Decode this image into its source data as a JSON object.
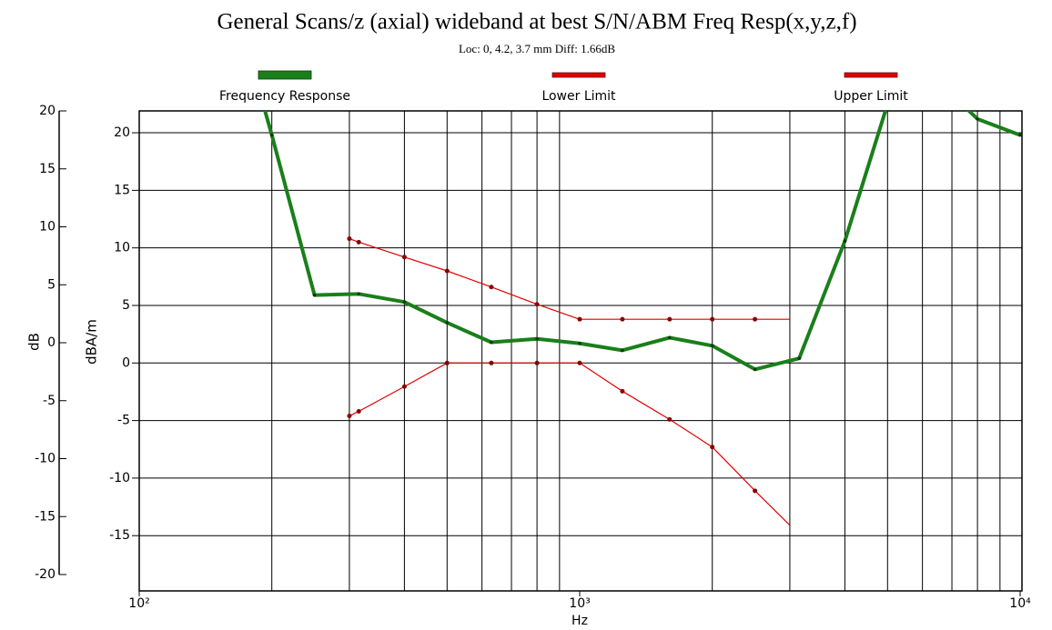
{
  "chart_data": {
    "type": "line",
    "title": "General Scans/z (axial) wideband at best S/N/ABM Freq Resp(x,y,z,f)",
    "subtitle": "Loc: 0, 4.2, 3.7 mm Diff: 1.66dB",
    "xlabel": "Hz",
    "ylabel": "dB",
    "y2label": "dBA/m",
    "log_x": true,
    "grid": true,
    "xlim": [
      100,
      10000
    ],
    "xticks": [
      {
        "value": 100,
        "label": "10²"
      },
      {
        "value": 1000,
        "label": "10³"
      },
      {
        "value": 10000,
        "label": "10⁴"
      }
    ],
    "ylim": [
      -20,
      20
    ],
    "yticks": [
      -20,
      -15,
      -10,
      -5,
      0,
      5,
      10,
      15,
      20
    ],
    "y2lim": [
      -19.8,
      21.9
    ],
    "y2ticks": [
      -15,
      -10,
      -5,
      0,
      5,
      10,
      15,
      20
    ],
    "legend": "top",
    "series": [
      {
        "name": "Frequency Response",
        "color": "#1a7f1a",
        "axis": "y2",
        "x": [
          160,
          200,
          250,
          315,
          400,
          500,
          630,
          800,
          1000,
          1250,
          1600,
          2000,
          2500,
          3150,
          4000,
          5000,
          6300,
          8000,
          10000
        ],
        "values": [
          33,
          19.8,
          5.9,
          6.0,
          5.3,
          3.5,
          1.8,
          2.1,
          1.7,
          1.1,
          2.2,
          1.5,
          -0.55,
          0.4,
          10.6,
          22.5,
          25,
          21.2,
          19.8
        ]
      },
      {
        "name": "Lower Limit",
        "color": "#e00000",
        "axis": "y2",
        "x": [
          300,
          315,
          400,
          500,
          630,
          800,
          1000,
          1250,
          1600,
          2000,
          2500,
          3000
        ],
        "values": [
          -4.6,
          -4.2,
          -2.05,
          0,
          0,
          0,
          0,
          -2.45,
          -4.9,
          -7.3,
          -11.1,
          -14.1
        ]
      },
      {
        "name": "Upper Limit",
        "color": "#e00000",
        "axis": "y2",
        "x": [
          300,
          315,
          400,
          500,
          630,
          800,
          1000,
          1250,
          1600,
          2000,
          2500,
          3000
        ],
        "values": [
          10.8,
          10.5,
          9.2,
          8.0,
          6.6,
          5.1,
          3.8,
          3.8,
          3.8,
          3.8,
          3.8,
          3.8
        ]
      }
    ]
  }
}
